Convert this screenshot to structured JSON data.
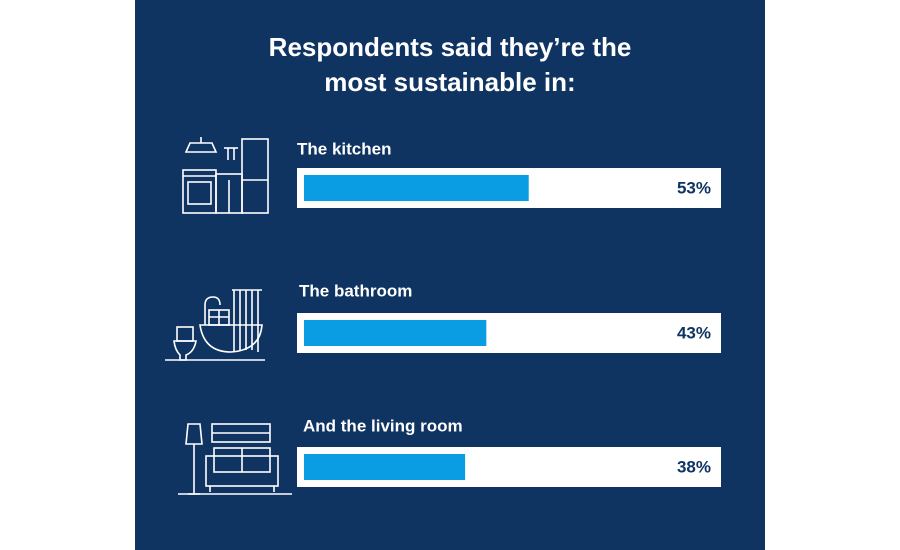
{
  "chart_data": {
    "type": "bar",
    "title": "Respondents said they’re the most sustainable in:",
    "categories": [
      "The kitchen",
      "The bathroom",
      "And the living room"
    ],
    "values": [
      53,
      43,
      38
    ],
    "value_labels": [
      "53%",
      "43%",
      "38%"
    ],
    "color": "#0a9de3",
    "xlim": [
      0,
      100
    ]
  }
}
